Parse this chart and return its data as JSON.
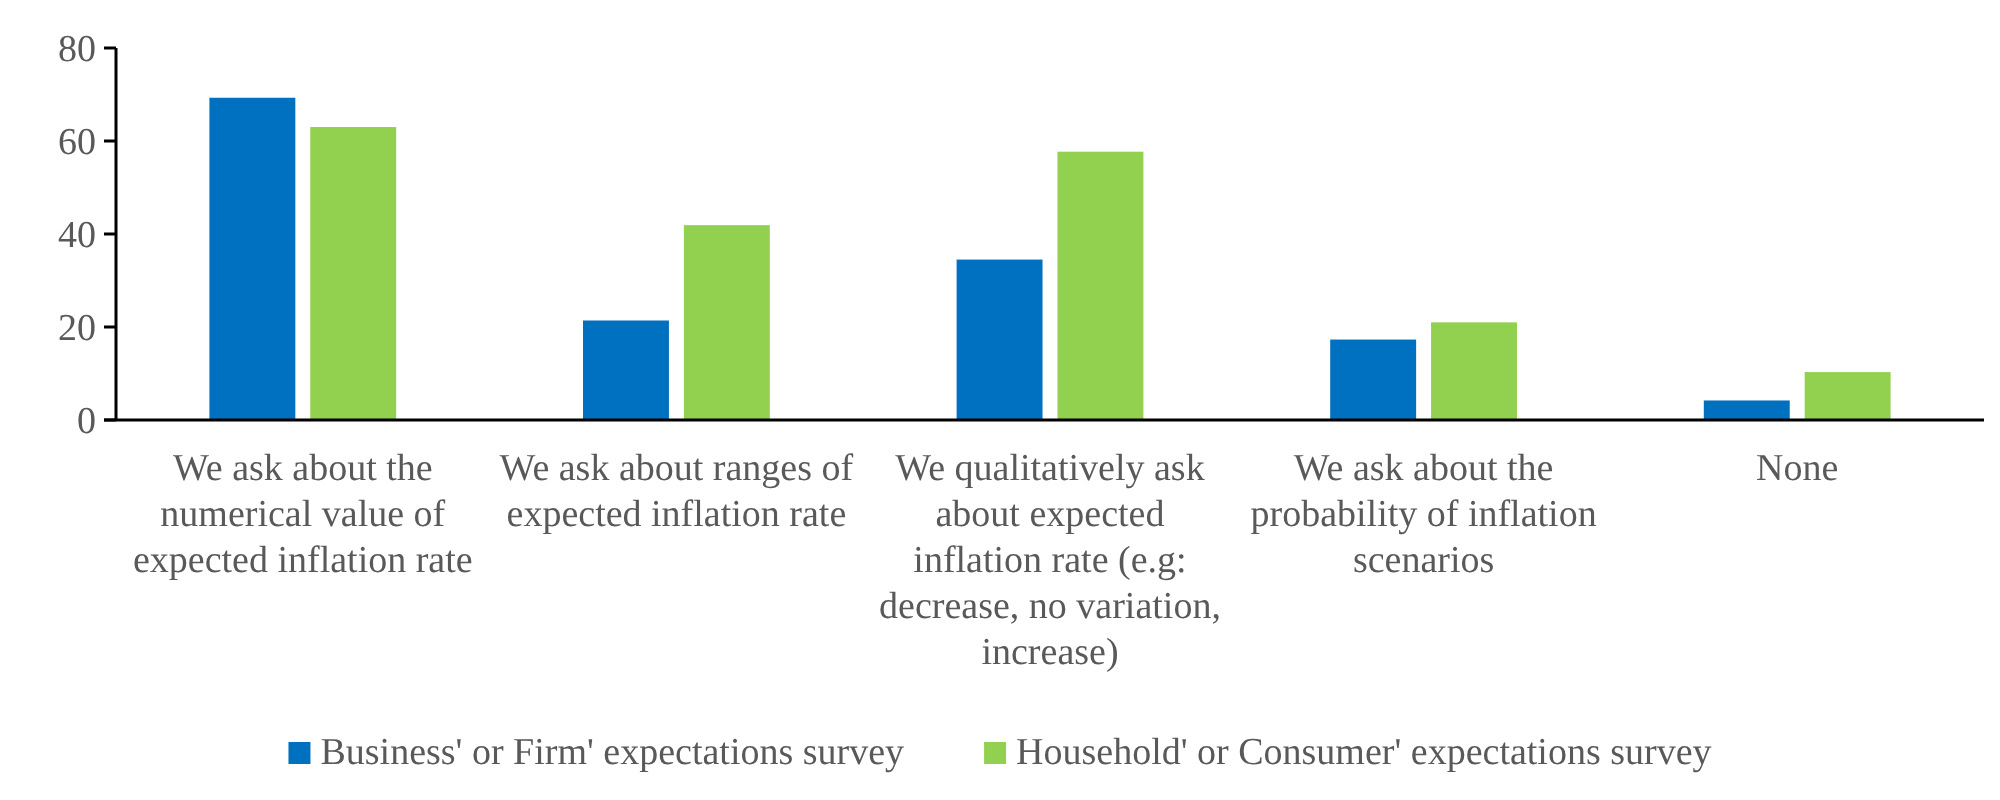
{
  "chart_data": {
    "type": "bar",
    "categories": [
      "We ask about the numerical value of expected inflation rate",
      "We ask about ranges of expected inflation rate",
      "We qualitatively ask about expected inflation rate (e.g: decrease, no variation, increase)",
      "We ask about the probability of inflation scenarios",
      "None"
    ],
    "series": [
      {
        "name": "Business' or Firm' expectations survey",
        "color": "#0070c0",
        "values": [
          69.3,
          21.4,
          34.5,
          17.3,
          4.2
        ]
      },
      {
        "name": "Household' or Consumer' expectations survey",
        "color": "#92d050",
        "values": [
          63.0,
          41.9,
          57.7,
          21.0,
          10.3
        ]
      }
    ],
    "ylim": [
      0,
      80
    ],
    "yticks": [
      0,
      20,
      40,
      60,
      80
    ],
    "grid": false,
    "legend": "bottom"
  }
}
